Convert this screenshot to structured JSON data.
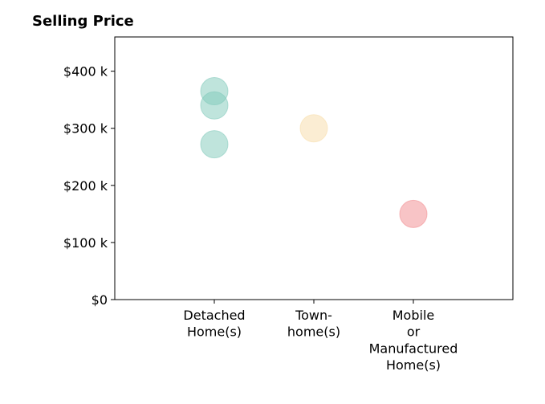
{
  "chart_data": {
    "type": "scatter",
    "title": "Selling Price",
    "xlabel": "",
    "ylabel": "",
    "categories": [
      [
        "Detached",
        "Home(s)"
      ],
      [
        "Town-",
        "home(s)"
      ],
      [
        "Mobile",
        "or",
        "Manufactured",
        "Home(s)"
      ]
    ],
    "yticks": [
      {
        "value": 0,
        "label": "$0"
      },
      {
        "value": 100000,
        "label": "$100 k"
      },
      {
        "value": 200000,
        "label": "$200 k"
      },
      {
        "value": 300000,
        "label": "$300 k"
      },
      {
        "value": 400000,
        "label": "$400 k"
      }
    ],
    "ylim": [
      0,
      460000
    ],
    "xlim": [
      -1,
      3
    ],
    "grid": false,
    "points": [
      {
        "category": 0,
        "y": 365000,
        "color": "#80c9b9"
      },
      {
        "category": 0,
        "y": 340000,
        "color": "#80c9b9"
      },
      {
        "category": 0,
        "y": 272000,
        "color": "#80c9b9"
      },
      {
        "category": 1,
        "y": 300000,
        "color": "#f7dca8"
      },
      {
        "category": 2,
        "y": 150000,
        "color": "#f18a8e"
      }
    ]
  }
}
